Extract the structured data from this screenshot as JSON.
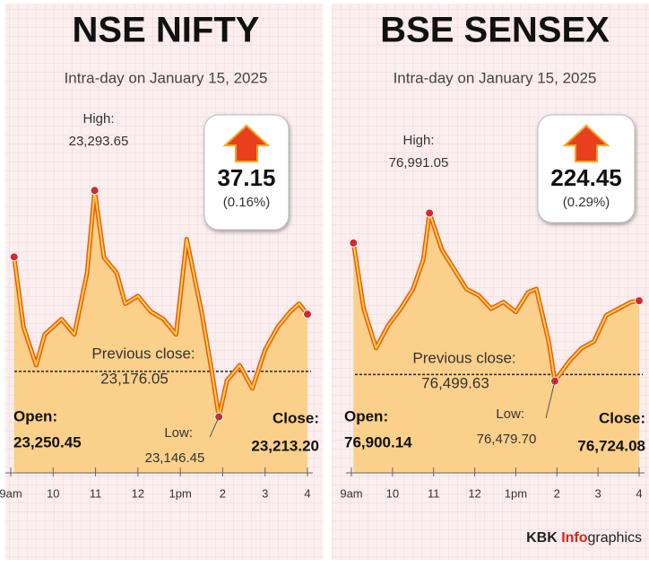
{
  "chart_data": [
    {
      "type": "line",
      "title": "NSE NIFTY",
      "subtitle": "Intra-day on January 15, 2025",
      "x": [
        9.08,
        9.3,
        9.6,
        9.8,
        10.2,
        10.5,
        10.8,
        10.98,
        11.2,
        11.5,
        11.7,
        12.0,
        12.3,
        12.6,
        12.9,
        13.15,
        13.5,
        13.75,
        13.91,
        14.1,
        14.4,
        14.7,
        15.0,
        15.3,
        15.6,
        15.8,
        16.0
      ],
      "values": [
        23250.45,
        23205,
        23180,
        23200,
        23210,
        23200,
        23240,
        23293.65,
        23250,
        23240,
        23220,
        23225,
        23215,
        23210,
        23200,
        23262,
        23215,
        23175,
        23146.45,
        23170,
        23180,
        23165,
        23190,
        23205,
        23215,
        23220,
        23213.2
      ],
      "color": "#f5a623",
      "fill": "#fbd08a",
      "xlim": [
        9,
        16
      ],
      "xticks": [
        {
          "value": 9,
          "label": "9am"
        },
        10,
        11,
        12,
        {
          "value": 13,
          "label": "1pm"
        },
        {
          "value": 14,
          "label": "2"
        },
        {
          "value": 15,
          "label": "3"
        },
        {
          "value": 16,
          "label": "4"
        }
      ],
      "ylim": [
        23110,
        23330
      ],
      "change": 37.15,
      "change_pct_label": "(0.16%)",
      "annotations": {
        "high": {
          "text": "High:",
          "value": 23293.65,
          "label": "23,293.65"
        },
        "previous_close": {
          "text": "Previous close:",
          "value": 23176.05,
          "label": "23,176.05"
        },
        "open": {
          "text": "Open:",
          "value": 23250.45,
          "label": "23,250.45"
        },
        "low": {
          "text": "Low:",
          "value": 23146.45,
          "label": "23,146.45"
        },
        "close": {
          "text": "Close:",
          "value": 23213.2,
          "label": "23,213.20"
        }
      }
    },
    {
      "type": "line",
      "title": "BSE SENSEX",
      "subtitle": "Intra-day on January 15, 2025",
      "x": [
        9.05,
        9.3,
        9.6,
        9.9,
        10.2,
        10.5,
        10.75,
        10.9,
        11.2,
        11.5,
        11.8,
        12.1,
        12.4,
        12.7,
        13.0,
        13.3,
        13.5,
        13.8,
        13.95,
        14.3,
        14.6,
        14.9,
        15.2,
        15.5,
        15.8,
        16.0
      ],
      "values": [
        76900.14,
        76700,
        76580,
        76650,
        76700,
        76760,
        76850,
        76991.05,
        76880,
        76820,
        76760,
        76740,
        76700,
        76720,
        76690,
        76750,
        76760,
        76600,
        76479.7,
        76540,
        76580,
        76600,
        76680,
        76700,
        76720,
        76724.08
      ],
      "color": "#f5a623",
      "fill": "#fbd08a",
      "xlim": [
        9,
        16
      ],
      "xticks": [
        {
          "value": 9,
          "label": "9am"
        },
        10,
        11,
        12,
        {
          "value": 13,
          "label": "1pm"
        },
        {
          "value": 14,
          "label": "2"
        },
        {
          "value": 15,
          "label": "3"
        },
        {
          "value": 16,
          "label": "4"
        }
      ],
      "ylim": [
        76200,
        77230
      ],
      "change": 224.45,
      "change_pct_label": "(0.29%)",
      "annotations": {
        "high": {
          "text": "High:",
          "value": 76991.05,
          "label": "76,991.05"
        },
        "previous_close": {
          "text": "Previous close:",
          "value": 76499.63,
          "label": "76,499.63"
        },
        "open": {
          "text": "Open:",
          "value": 76900.14,
          "label": "76,900.14"
        },
        "low": {
          "text": "Low:",
          "value": 76479.7,
          "label": "76,479.70"
        },
        "close": {
          "text": "Close:",
          "value": 76724.08,
          "label": "76,724.08"
        }
      }
    }
  ],
  "credit": {
    "part1": "KBK ",
    "part2": "Info",
    "part3": "graphics"
  }
}
